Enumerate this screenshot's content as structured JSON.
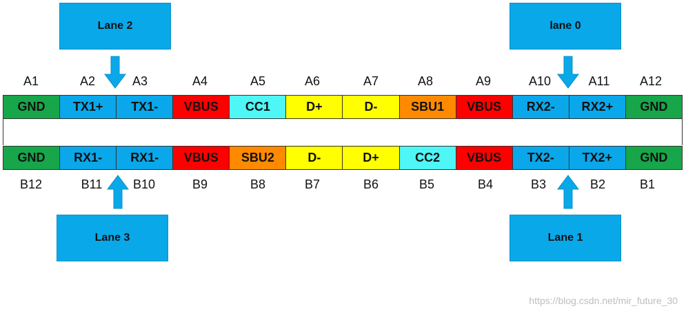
{
  "lanes": {
    "lane2": "Lane 2",
    "lane0": "lane 0",
    "lane3": "Lane 3",
    "lane1": "Lane 1"
  },
  "top_labels": [
    "A1",
    "A2",
    "A3",
    "A4",
    "A5",
    "A6",
    "A7",
    "A8",
    "A9",
    "A10",
    "A11",
    "A12"
  ],
  "top_pins": [
    {
      "label": "GND",
      "color": "#17a64a"
    },
    {
      "label": "TX1+",
      "color": "#0aa7ea"
    },
    {
      "label": "TX1-",
      "color": "#0aa7ea"
    },
    {
      "label": "VBUS",
      "color": "#ff0000"
    },
    {
      "label": "CC1",
      "color": "#4ff6f6"
    },
    {
      "label": "D+",
      "color": "#ffff00"
    },
    {
      "label": "D-",
      "color": "#ffff00"
    },
    {
      "label": "SBU1",
      "color": "#ff8a00"
    },
    {
      "label": "VBUS",
      "color": "#ff0000"
    },
    {
      "label": "RX2-",
      "color": "#0aa7ea"
    },
    {
      "label": "RX2+",
      "color": "#0aa7ea"
    },
    {
      "label": "GND",
      "color": "#17a64a"
    }
  ],
  "bottom_pins": [
    {
      "label": "GND",
      "color": "#17a64a"
    },
    {
      "label": "RX1-",
      "color": "#0aa7ea"
    },
    {
      "label": "RX1-",
      "color": "#0aa7ea"
    },
    {
      "label": "VBUS",
      "color": "#ff0000"
    },
    {
      "label": "SBU2",
      "color": "#ff8a00"
    },
    {
      "label": "D-",
      "color": "#ffff00"
    },
    {
      "label": "D+",
      "color": "#ffff00"
    },
    {
      "label": "CC2",
      "color": "#4ff6f6"
    },
    {
      "label": "VBUS",
      "color": "#ff0000"
    },
    {
      "label": "TX2-",
      "color": "#0aa7ea"
    },
    {
      "label": "TX2+",
      "color": "#0aa7ea"
    },
    {
      "label": "GND",
      "color": "#17a64a"
    }
  ],
  "bottom_labels": [
    "B12",
    "B11",
    "B10",
    "B9",
    "B8",
    "B7",
    "B6",
    "B5",
    "B4",
    "B3",
    "B2",
    "B1"
  ],
  "arrow_color": "#09a8e9",
  "watermark": "https://blog.csdn.net/mir_future_30"
}
